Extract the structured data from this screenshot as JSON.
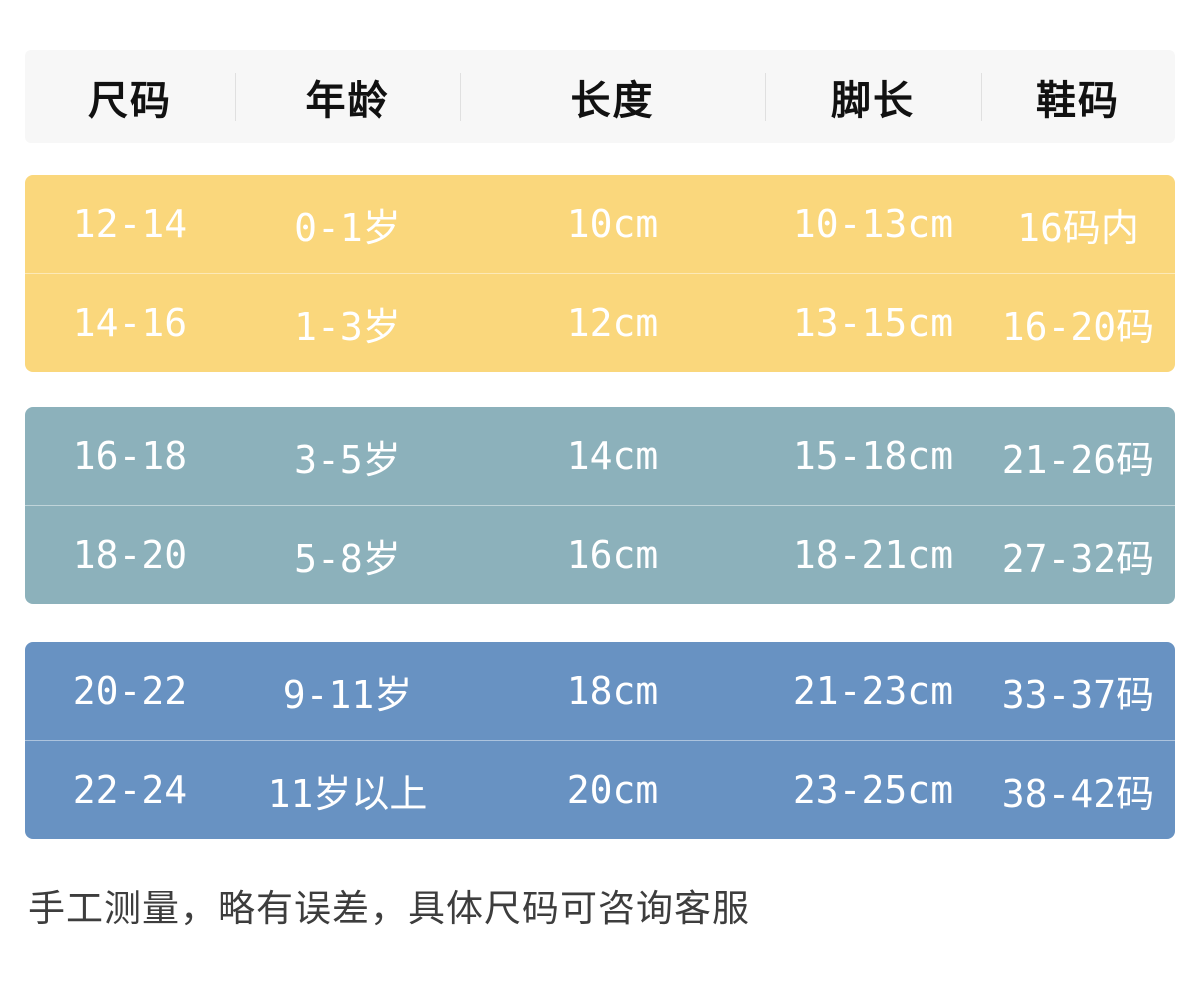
{
  "header": {
    "columns": [
      "尺码",
      "年龄",
      "长度",
      "脚长",
      "鞋码"
    ]
  },
  "table": {
    "groups": [
      {
        "name": "infant",
        "color": "#fad77c",
        "rows": [
          [
            "12-14",
            "0-1岁",
            "10cm",
            "10-13cm",
            "16码内"
          ],
          [
            "14-16",
            "1-3岁",
            "12cm",
            "13-15cm",
            "16-20码"
          ]
        ]
      },
      {
        "name": "child",
        "color": "#8cb1bb",
        "rows": [
          [
            "16-18",
            "3-5岁",
            "14cm",
            "15-18cm",
            "21-26码"
          ],
          [
            "18-20",
            "5-8岁",
            "16cm",
            "18-21cm",
            "27-32码"
          ]
        ]
      },
      {
        "name": "big-child",
        "color": "#6892c2",
        "rows": [
          [
            "20-22",
            "9-11岁",
            "18cm",
            "21-23cm",
            "33-37码"
          ],
          [
            "22-24",
            "11岁以上",
            "20cm",
            "23-25cm",
            "38-42码"
          ]
        ]
      }
    ]
  },
  "footnote": "手工测量，略有误差，具体尺码可咨询客服",
  "colors": {
    "page_bg": "#ffffff",
    "header_bg": "#f7f7f7",
    "header_text": "#111111",
    "header_divider": "#e0e0e0",
    "band_yellow": "#fad77c",
    "band_teal": "#8cb1bb",
    "band_blue": "#6892c2",
    "band_text": "#ffffff",
    "footnote_text": "#3d3d3d"
  }
}
